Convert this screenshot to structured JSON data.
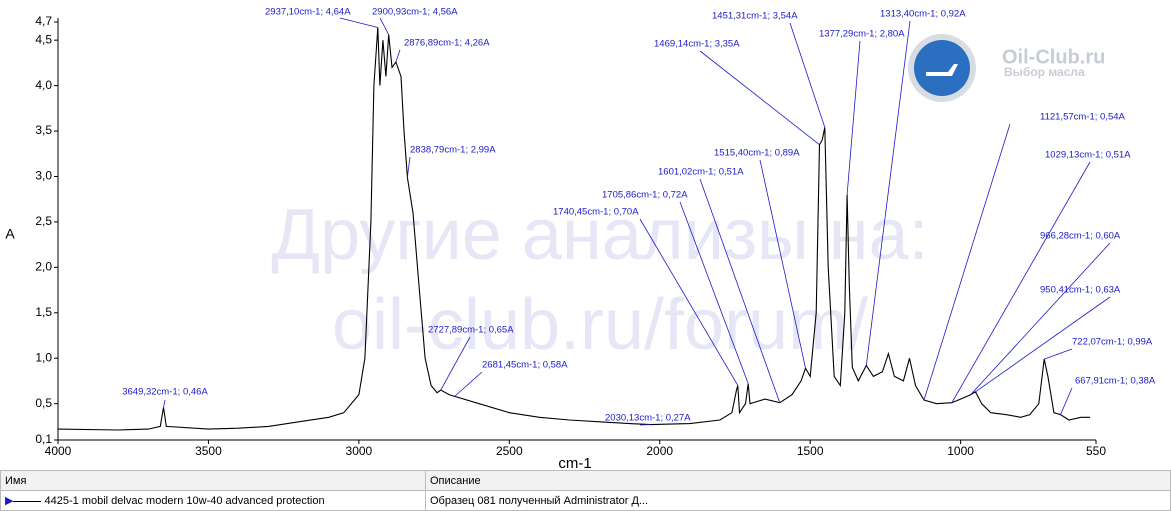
{
  "chart_data": {
    "type": "line",
    "xlabel": "cm-1",
    "ylabel": "A",
    "xlim": [
      4000,
      550
    ],
    "ylim": [
      0.1,
      4.7
    ],
    "xticks": [
      4000,
      3500,
      3000,
      2500,
      2000,
      1500,
      1000,
      550
    ],
    "yticks": [
      {
        "value": 0.1,
        "label": "0,1"
      },
      {
        "value": 0.5,
        "label": "0,5"
      },
      {
        "value": 1.0,
        "label": "1,0"
      },
      {
        "value": 1.5,
        "label": "1,5"
      },
      {
        "value": 2.0,
        "label": "2,0"
      },
      {
        "value": 2.5,
        "label": "2,5"
      },
      {
        "value": 3.0,
        "label": "3,0"
      },
      {
        "value": 3.5,
        "label": "3,5"
      },
      {
        "value": 4.0,
        "label": "4,0"
      },
      {
        "value": 4.5,
        "label": "4,5"
      },
      {
        "value": 4.7,
        "label": "4,7"
      }
    ],
    "series": [
      {
        "name": "4425-1 mobil delvac modern 10w-40 advanced protection",
        "color": "#000000",
        "x": [
          4000,
          3800,
          3700,
          3660,
          3649.32,
          3640,
          3500,
          3400,
          3300,
          3200,
          3100,
          3050,
          3000,
          2980,
          2960,
          2950,
          2937.1,
          2930,
          2920,
          2910,
          2900.93,
          2890,
          2876.89,
          2860,
          2850,
          2838.79,
          2820,
          2800,
          2780,
          2760,
          2740,
          2727.89,
          2700,
          2681.45,
          2600,
          2500,
          2400,
          2300,
          2200,
          2100,
          2030.13,
          1900,
          1800,
          1760,
          1745,
          1740.45,
          1735,
          1715,
          1705.86,
          1700,
          1650,
          1601.02,
          1560,
          1530,
          1515.4,
          1500,
          1480,
          1469.14,
          1460,
          1451.31,
          1440,
          1420,
          1400,
          1385,
          1377.29,
          1370,
          1360,
          1340,
          1313.4,
          1290,
          1260,
          1240,
          1220,
          1190,
          1170,
          1150,
          1121.57,
          1080,
          1029.13,
          1000,
          966.28,
          950.41,
          930,
          900,
          850,
          800,
          770,
          740,
          722.07,
          710,
          690,
          667.91,
          640,
          600,
          570
        ],
        "values": [
          0.22,
          0.21,
          0.22,
          0.25,
          0.46,
          0.25,
          0.22,
          0.23,
          0.25,
          0.3,
          0.35,
          0.4,
          0.6,
          1.0,
          2.5,
          4.0,
          4.64,
          4.0,
          4.5,
          4.1,
          4.56,
          4.2,
          4.26,
          4.1,
          3.5,
          2.99,
          2.6,
          1.8,
          1.0,
          0.7,
          0.62,
          0.65,
          0.6,
          0.58,
          0.5,
          0.4,
          0.35,
          0.32,
          0.3,
          0.28,
          0.27,
          0.28,
          0.32,
          0.4,
          0.65,
          0.7,
          0.4,
          0.5,
          0.72,
          0.5,
          0.55,
          0.51,
          0.6,
          0.75,
          0.89,
          0.8,
          1.5,
          3.35,
          3.4,
          3.54,
          2.0,
          0.8,
          0.7,
          1.5,
          2.8,
          1.8,
          0.9,
          0.75,
          0.92,
          0.8,
          0.85,
          1.05,
          0.8,
          0.75,
          1.0,
          0.7,
          0.54,
          0.5,
          0.51,
          0.55,
          0.6,
          0.63,
          0.5,
          0.4,
          0.38,
          0.35,
          0.38,
          0.5,
          0.99,
          0.8,
          0.4,
          0.38,
          0.32,
          0.35,
          0.35
        ]
      }
    ],
    "annotations": [
      {
        "label": "3649,32cm-1; 0,46A",
        "x": 3649.32,
        "y": 0.46
      },
      {
        "label": "2937,10cm-1; 4,64A",
        "x": 2937.1,
        "y": 4.64
      },
      {
        "label": "2900,93cm-1; 4,56A",
        "x": 2900.93,
        "y": 4.56
      },
      {
        "label": "2876,89cm-1; 4,26A",
        "x": 2876.89,
        "y": 4.26
      },
      {
        "label": "2838,79cm-1; 2,99A",
        "x": 2838.79,
        "y": 2.99
      },
      {
        "label": "2727,89cm-1; 0,65A",
        "x": 2727.89,
        "y": 0.65
      },
      {
        "label": "2681,45cm-1; 0,58A",
        "x": 2681.45,
        "y": 0.58
      },
      {
        "label": "2030,13cm-1; 0,27A",
        "x": 2030.13,
        "y": 0.27
      },
      {
        "label": "1740,45cm-1; 0,70A",
        "x": 1740.45,
        "y": 0.7
      },
      {
        "label": "1705,86cm-1; 0,72A",
        "x": 1705.86,
        "y": 0.72
      },
      {
        "label": "1601,02cm-1; 0,51A",
        "x": 1601.02,
        "y": 0.51
      },
      {
        "label": "1515,40cm-1; 0,89A",
        "x": 1515.4,
        "y": 0.89
      },
      {
        "label": "1469,14cm-1; 3,35A",
        "x": 1469.14,
        "y": 3.35
      },
      {
        "label": "1451,31cm-1; 3,54A",
        "x": 1451.31,
        "y": 3.54
      },
      {
        "label": "1377,29cm-1; 2,80A",
        "x": 1377.29,
        "y": 2.8
      },
      {
        "label": "1313,40cm-1; 0,92A",
        "x": 1313.4,
        "y": 0.92
      },
      {
        "label": "1121,57cm-1; 0,54A",
        "x": 1121.57,
        "y": 0.54
      },
      {
        "label": "1029,13cm-1; 0,51A",
        "x": 1029.13,
        "y": 0.51
      },
      {
        "label": "966,28cm-1; 0,60A",
        "x": 966.28,
        "y": 0.6
      },
      {
        "label": "950,41cm-1; 0,63A",
        "x": 950.41,
        "y": 0.63
      },
      {
        "label": "722,07cm-1; 0,99A",
        "x": 722.07,
        "y": 0.99
      },
      {
        "label": "667,91cm-1; 0,38A",
        "x": 667.91,
        "y": 0.38
      }
    ]
  },
  "watermark": [
    "Другие анализы на:",
    "oil-club.ru/forum/"
  ],
  "logo": {
    "title": "Oil-Club.ru",
    "subtitle": "Выбор масла"
  },
  "table": {
    "headers": [
      "Имя",
      "Описание"
    ],
    "rows": [
      [
        "4425-1 mobil delvac modern 10w-40 advanced protection",
        "Образец 081 полученный Administrator Д..."
      ]
    ]
  }
}
